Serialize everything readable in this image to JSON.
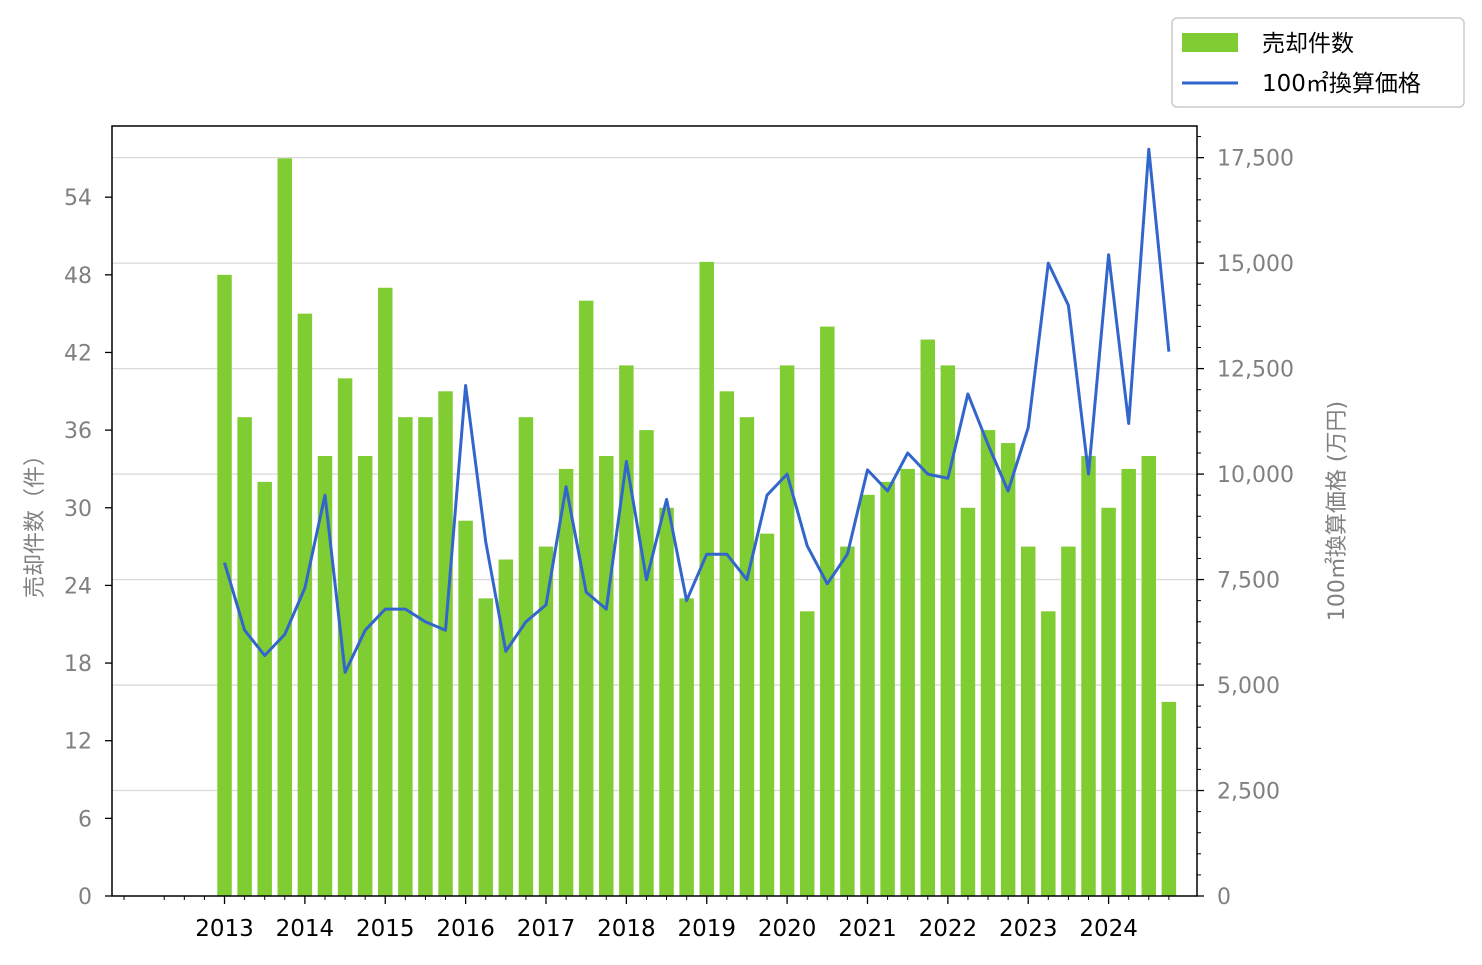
{
  "chart_data": {
    "type": "bar",
    "title": "",
    "x": [
      2013,
      2013.25,
      2013.5,
      2013.75,
      2014,
      2014.25,
      2014.5,
      2014.75,
      2015,
      2015.25,
      2015.5,
      2015.75,
      2016,
      2016.25,
      2016.5,
      2016.75,
      2017,
      2017.25,
      2017.5,
      2017.75,
      2018,
      2018.25,
      2018.5,
      2018.75,
      2019,
      2019.25,
      2019.5,
      2019.75,
      2020,
      2020.25,
      2020.5,
      2020.75,
      2021,
      2021.25,
      2021.5,
      2021.75,
      2022,
      2022.25,
      2022.5,
      2022.75,
      2023,
      2023.25,
      2023.5,
      2023.75,
      2024,
      2024.25,
      2024.5,
      2024.75
    ],
    "x_ticks": [
      "2013",
      "2014",
      "2015",
      "2016",
      "2017",
      "2018",
      "2019",
      "2020",
      "2021",
      "2022",
      "2023",
      "2024"
    ],
    "xlim": [
      2011.6,
      2025.1
    ],
    "series": [
      {
        "name": "売却件数",
        "type": "bar",
        "axis": "left",
        "color": "#80CC33",
        "values": [
          48,
          37,
          32,
          57,
          45,
          34,
          40,
          34,
          47,
          37,
          37,
          39,
          29,
          23,
          26,
          37,
          27,
          33,
          46,
          34,
          41,
          36,
          30,
          23,
          49,
          39,
          37,
          28,
          41,
          22,
          44,
          27,
          31,
          32,
          33,
          43,
          41,
          30,
          36,
          35,
          27,
          22,
          27,
          34,
          30,
          33,
          34,
          15
        ]
      },
      {
        "name": "100㎡換算価格",
        "type": "line",
        "axis": "right",
        "color": "#3366CC",
        "values": [
          7900,
          6300,
          5700,
          6200,
          7300,
          9500,
          5300,
          6300,
          6800,
          6800,
          6500,
          6300,
          12100,
          8400,
          5800,
          6500,
          6900,
          9700,
          7200,
          6800,
          10300,
          7500,
          9400,
          7000,
          8100,
          8100,
          7500,
          9500,
          10000,
          8300,
          7400,
          8100,
          10100,
          9600,
          10500,
          10000,
          9900,
          11900,
          10700,
          9600,
          11100,
          15000,
          14000,
          10000,
          15200,
          11200,
          17700,
          12900
        ]
      }
    ],
    "y_left": {
      "label": "売却件数（件）",
      "ylim": [
        0,
        59.5
      ],
      "ticks": [
        "0",
        "6",
        "12",
        "18",
        "24",
        "30",
        "36",
        "42",
        "48",
        "54"
      ]
    },
    "y_right": {
      "label": "100㎡換算価格 (万円)",
      "ylim": [
        0,
        18250
      ],
      "ticks": [
        "0",
        "2,500",
        "5,000",
        "7,500",
        "10,000",
        "12,500",
        "15,000",
        "17,500"
      ]
    },
    "grid": true,
    "legend": "top-right"
  }
}
